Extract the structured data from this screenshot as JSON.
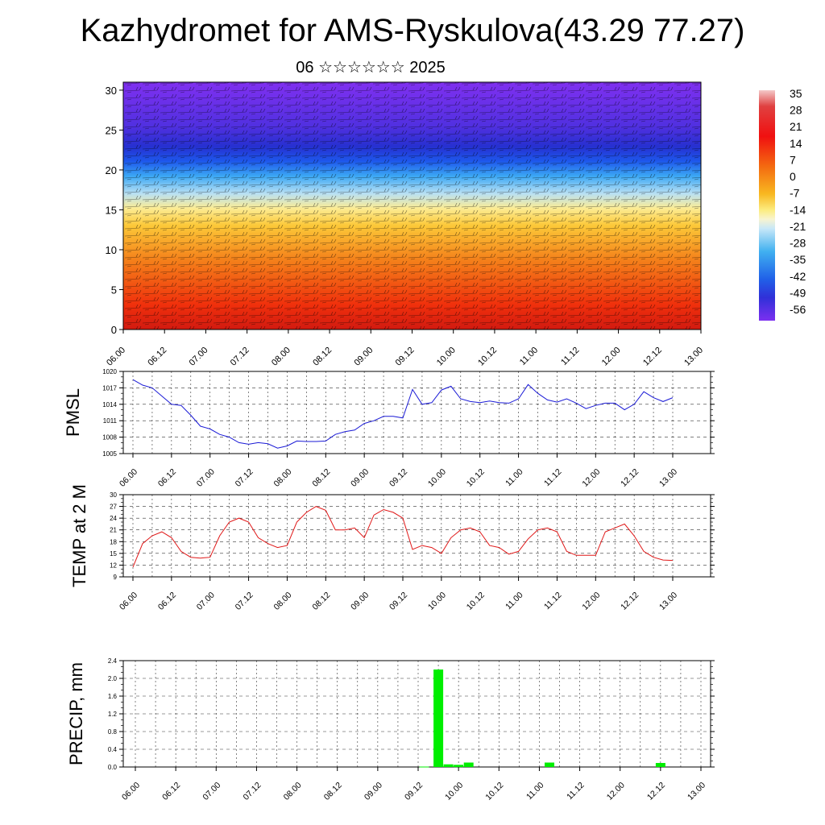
{
  "title": "Kazhydromet for AMS-Ryskulova(43.29 77.27)",
  "subtitle": "06 ☆☆☆☆☆☆ 2025",
  "time_labels": [
    "06.00",
    "06.12",
    "07.00",
    "07.12",
    "08.00",
    "08.12",
    "09.00",
    "09.12",
    "10.00",
    "10.12",
    "11.00",
    "11.12",
    "12.00",
    "12.12",
    "13.00"
  ],
  "colorbar": {
    "labels": [
      "35",
      "28",
      "21",
      "14",
      "7",
      "0",
      "-7",
      "-14",
      "-21",
      "-28",
      "-35",
      "-42",
      "-49",
      "-56"
    ]
  },
  "colors": {
    "pmsl_line": "#1a1ad6",
    "temp_line": "#e01818",
    "precip_bar": "#00ee00"
  },
  "chart_data": [
    {
      "type": "heatmap",
      "name": "vertical_profile",
      "xlabel": "",
      "ylabel": "",
      "ylim": [
        0,
        31
      ],
      "y_ticks": [
        0,
        5,
        10,
        15,
        20,
        25,
        30
      ],
      "x_tick_labels": [
        "06.00",
        "06.12",
        "07.00",
        "07.12",
        "08.00",
        "08.12",
        "09.00",
        "09.12",
        "10.00",
        "10.12",
        "11.00",
        "11.12",
        "12.00",
        "12.12",
        "13.00"
      ],
      "colorbar_labels": [
        "35",
        "28",
        "21",
        "14",
        "7",
        "0",
        "-7",
        "-14",
        "-21",
        "-28",
        "-35",
        "-42",
        "-49",
        "-56"
      ],
      "color_range": [
        -60,
        38
      ],
      "overlay": "wind barbs"
    },
    {
      "type": "line",
      "ylabel": "PMSL",
      "ylim": [
        1005,
        1020
      ],
      "y_ticks": [
        1005,
        1008,
        1011,
        1014,
        1017,
        1020
      ],
      "x_tick_labels": [
        "06.00",
        "06.12",
        "07.00",
        "07.12",
        "08.00",
        "08.12",
        "09.00",
        "09.12",
        "10.00",
        "10.12",
        "11.00",
        "11.12",
        "12.00",
        "12.12",
        "13.00"
      ],
      "values": [
        1018.5,
        1017.5,
        1017,
        1015.5,
        1014,
        1013.8,
        1012,
        1010,
        1009.5,
        1008.5,
        1008,
        1007,
        1006.7,
        1007,
        1006.8,
        1006,
        1006.4,
        1007.3,
        1007.2,
        1007.2,
        1007.3,
        1008.5,
        1009,
        1009.3,
        1010.5,
        1011,
        1011.8,
        1011.8,
        1011.5,
        1016.7,
        1014,
        1014.3,
        1016.6,
        1017.3,
        1015,
        1014.5,
        1014.3,
        1014.6,
        1014.3,
        1014.2,
        1015,
        1017.6,
        1016,
        1014.8,
        1014.4,
        1015,
        1014.2,
        1013.2,
        1013.8,
        1014.2,
        1014.2,
        1013,
        1014,
        1016.3,
        1015.2,
        1014.5,
        1015.2
      ],
      "grid": true
    },
    {
      "type": "line",
      "ylabel": "TEMP at 2 M",
      "ylim": [
        9,
        30
      ],
      "y_ticks": [
        9,
        12,
        15,
        18,
        21,
        24,
        27,
        30
      ],
      "x_tick_labels": [
        "06.00",
        "06.12",
        "07.00",
        "07.12",
        "08.00",
        "08.12",
        "09.00",
        "09.12",
        "10.00",
        "10.12",
        "11.00",
        "11.12",
        "12.00",
        "12.12",
        "13.00"
      ],
      "values": [
        11.5,
        17.5,
        19.5,
        20.5,
        19,
        15.5,
        14,
        13.8,
        14,
        19.5,
        23,
        24,
        23,
        19,
        17.5,
        16.5,
        17,
        23,
        25.5,
        27,
        26,
        21,
        21,
        21.5,
        19,
        24.8,
        26.2,
        25.5,
        24,
        16,
        17,
        16.5,
        15,
        19,
        21,
        21.5,
        20.5,
        17,
        16.5,
        14.8,
        15.5,
        18.7,
        21,
        21.5,
        20.5,
        15.5,
        14.5,
        14.5,
        14.5,
        20.5,
        21.5,
        22.5,
        19.5,
        15.5,
        14,
        13.3,
        13.2
      ],
      "grid": true
    },
    {
      "type": "bar",
      "ylabel": "PRECIP, mm",
      "ylim": [
        0,
        2.4
      ],
      "y_ticks": [
        "0.0",
        "0.4",
        "0.8",
        "1.2",
        "1.6",
        "2.0",
        "2.4"
      ],
      "x_tick_labels": [
        "06.00",
        "06.12",
        "07.00",
        "07.12",
        "08.00",
        "08.12",
        "09.00",
        "09.12",
        "10.00",
        "10.12",
        "11.00",
        "11.12",
        "12.00",
        "12.12",
        "13.00"
      ],
      "bars": [
        {
          "x_index": 28.6,
          "value": 0.01
        },
        {
          "x_index": 30.0,
          "value": 2.2
        },
        {
          "x_index": 31.0,
          "value": 0.06
        },
        {
          "x_index": 32.0,
          "value": 0.05
        },
        {
          "x_index": 33.0,
          "value": 0.1
        },
        {
          "x_index": 41.0,
          "value": 0.1
        },
        {
          "x_index": 52.0,
          "value": 0.09
        }
      ],
      "grid": true
    }
  ]
}
